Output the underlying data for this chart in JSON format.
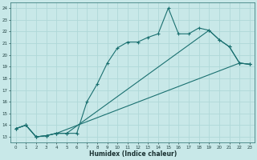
{
  "xlabel": "Humidex (Indice chaleur)",
  "bg_color": "#c8e8e8",
  "grid_color": "#b0d8d8",
  "line_color": "#1a7070",
  "xlim": [
    -0.5,
    23.5
  ],
  "ylim": [
    12.5,
    24.5
  ],
  "yticks": [
    13,
    14,
    15,
    16,
    17,
    18,
    19,
    20,
    21,
    22,
    23,
    24
  ],
  "xticks": [
    0,
    1,
    2,
    3,
    4,
    5,
    6,
    7,
    8,
    9,
    10,
    11,
    12,
    13,
    14,
    15,
    16,
    17,
    18,
    19,
    20,
    21,
    22,
    23
  ],
  "line1_x": [
    0,
    1,
    2,
    3,
    4,
    5,
    6,
    7,
    8,
    9,
    10,
    11,
    12,
    13,
    14,
    15,
    16,
    17,
    18,
    19,
    20,
    21,
    22,
    23
  ],
  "line1_y": [
    13.7,
    14.0,
    13.0,
    13.1,
    13.3,
    13.3,
    13.3,
    16.0,
    17.5,
    19.3,
    20.6,
    21.1,
    21.1,
    21.5,
    21.8,
    24.0,
    21.8,
    21.8,
    22.3,
    22.1,
    21.3,
    20.7,
    19.3,
    19.2
  ],
  "line2_x": [
    0,
    1,
    2,
    3,
    4,
    22,
    23
  ],
  "line2_y": [
    13.7,
    14.0,
    13.0,
    13.1,
    13.3,
    19.3,
    19.2
  ],
  "line3_x": [
    0,
    1,
    2,
    3,
    4,
    5,
    19,
    20,
    21,
    22,
    23
  ],
  "line3_y": [
    13.7,
    14.0,
    13.0,
    13.1,
    13.3,
    13.3,
    22.1,
    21.3,
    20.7,
    19.3,
    19.2
  ]
}
